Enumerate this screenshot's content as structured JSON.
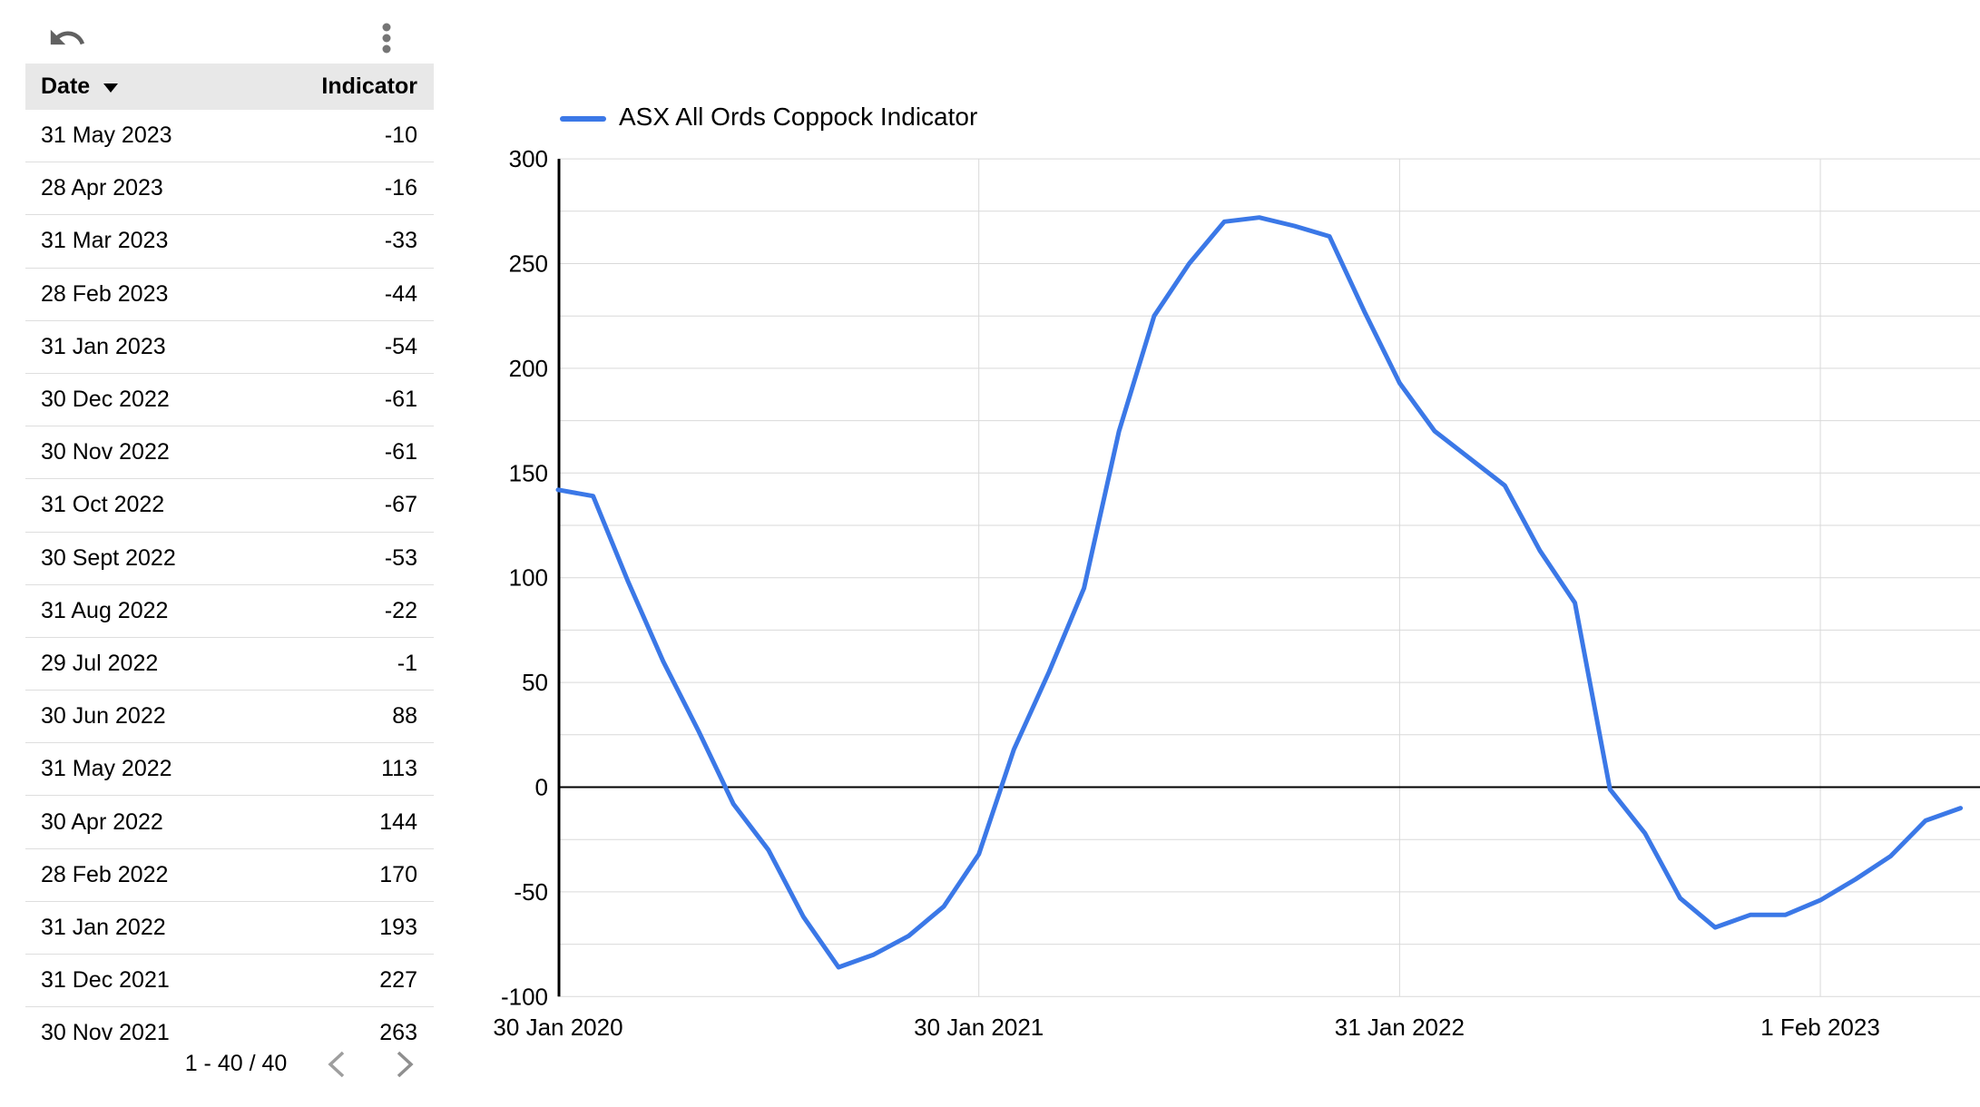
{
  "toolbar": {
    "undo_icon": "undo-arrow",
    "menu_icon": "kebab-vertical-dots"
  },
  "table": {
    "header": {
      "date_label": "Date",
      "indicator_label": "Indicator",
      "sort_icon": "sort-desc-triangle"
    },
    "rows": [
      {
        "date": "31 May 2023",
        "value": "-10"
      },
      {
        "date": "28 Apr 2023",
        "value": "-16"
      },
      {
        "date": "31 Mar 2023",
        "value": "-33"
      },
      {
        "date": "28 Feb 2023",
        "value": "-44"
      },
      {
        "date": "31 Jan 2023",
        "value": "-54"
      },
      {
        "date": "30 Dec 2022",
        "value": "-61"
      },
      {
        "date": "30 Nov 2022",
        "value": "-61"
      },
      {
        "date": "31 Oct 2022",
        "value": "-67"
      },
      {
        "date": "30 Sept 2022",
        "value": "-53"
      },
      {
        "date": "31 Aug 2022",
        "value": "-22"
      },
      {
        "date": "29 Jul 2022",
        "value": "-1"
      },
      {
        "date": "30 Jun 2022",
        "value": "88"
      },
      {
        "date": "31 May 2022",
        "value": "113"
      },
      {
        "date": "30 Apr 2022",
        "value": "144"
      },
      {
        "date": "28 Feb 2022",
        "value": "170"
      },
      {
        "date": "31 Jan 2022",
        "value": "193"
      },
      {
        "date": "31 Dec 2021",
        "value": "227"
      },
      {
        "date": "30 Nov 2021",
        "value": "263"
      }
    ],
    "pagination": {
      "range_label": "1 - 40 / 40",
      "prev_icon": "chevron-left",
      "next_icon": "chevron-right"
    }
  },
  "chart": {
    "legend_label": "ASX All Ords Coppock Indicator"
  },
  "chart_data": {
    "type": "line",
    "title": "ASX All Ords Coppock Indicator",
    "xlabel": "",
    "ylabel": "",
    "ylim": [
      -100,
      300
    ],
    "grid_step": 25,
    "y_tick_labels": [
      300,
      250,
      200,
      150,
      100,
      50,
      0,
      -50,
      -100
    ],
    "x_tick_labels": [
      "30 Jan 2020",
      "30 Jan 2021",
      "31 Jan 2022",
      "1 Feb 2023"
    ],
    "x_tick_month_index": [
      0,
      12,
      24,
      36
    ],
    "legend_position": "top",
    "grid": true,
    "months": [
      "2020-01",
      "2020-02",
      "2020-03",
      "2020-04",
      "2020-05",
      "2020-06",
      "2020-07",
      "2020-08",
      "2020-09",
      "2020-10",
      "2020-11",
      "2020-12",
      "2021-01",
      "2021-02",
      "2021-03",
      "2021-04",
      "2021-05",
      "2021-06",
      "2021-07",
      "2021-08",
      "2021-09",
      "2021-10",
      "2021-11",
      "2021-12",
      "2022-01",
      "2022-02",
      "2022-04",
      "2022-05",
      "2022-06",
      "2022-07",
      "2022-08",
      "2022-09",
      "2022-10",
      "2022-11",
      "2022-12",
      "2023-01",
      "2023-02",
      "2023-03",
      "2023-04",
      "2023-05"
    ],
    "month_index": [
      0,
      1,
      2,
      3,
      4,
      5,
      6,
      7,
      8,
      9,
      10,
      11,
      12,
      13,
      14,
      15,
      16,
      17,
      18,
      19,
      20,
      21,
      22,
      23,
      24,
      25,
      27,
      28,
      29,
      30,
      31,
      32,
      33,
      34,
      35,
      36,
      37,
      38,
      39,
      40
    ],
    "values": [
      142,
      139,
      98,
      60,
      27,
      -8,
      -30,
      -62,
      -86,
      -80,
      -71,
      -57,
      -32,
      18,
      55,
      95,
      170,
      225,
      250,
      270,
      272,
      268,
      263,
      227,
      193,
      170,
      144,
      113,
      88,
      -1,
      -22,
      -53,
      -67,
      -61,
      -61,
      -54,
      -44,
      -33,
      -16,
      -10
    ],
    "series_color": "#3b78e7",
    "grid_color": "#d9d9d9",
    "zero_line_color": "#000000",
    "axis_color": "#000000"
  },
  "colors": {
    "header_bg": "#e8e8e8",
    "row_border": "#dedede",
    "undo_gray": "#616161",
    "kebab_gray": "#757575",
    "chevron_prev": "#9e9e9e",
    "chevron_next": "#8f8f8f",
    "text": "#000000"
  }
}
